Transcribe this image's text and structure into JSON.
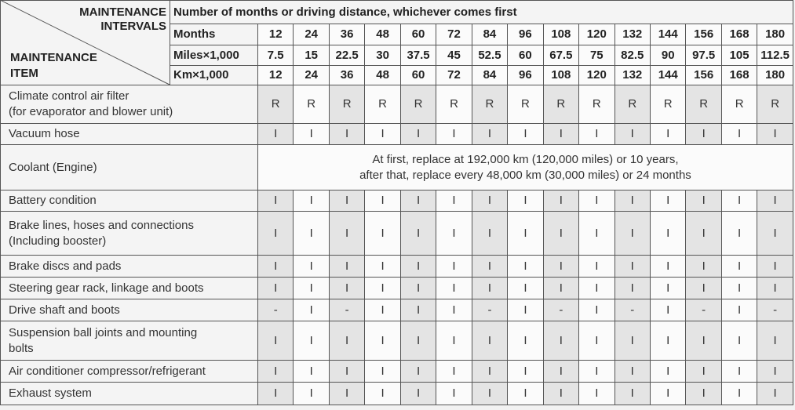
{
  "header": {
    "intervals": [
      "MAINTENANCE",
      "INTERVALS"
    ],
    "item": [
      "MAINTENANCE",
      "ITEM"
    ],
    "caption": "Number of months or driving distance, whichever comes first",
    "scales": [
      {
        "label": "Months",
        "values": [
          "12",
          "24",
          "36",
          "48",
          "60",
          "72",
          "84",
          "96",
          "108",
          "120",
          "132",
          "144",
          "156",
          "168",
          "180"
        ]
      },
      {
        "label": "Miles×1,000",
        "values": [
          "7.5",
          "15",
          "22.5",
          "30",
          "37.5",
          "45",
          "52.5",
          "60",
          "67.5",
          "75",
          "82.5",
          "90",
          "97.5",
          "105",
          "112.5"
        ]
      },
      {
        "label": "Km×1,000",
        "values": [
          "12",
          "24",
          "36",
          "48",
          "60",
          "72",
          "84",
          "96",
          "108",
          "120",
          "132",
          "144",
          "156",
          "168",
          "180"
        ]
      }
    ]
  },
  "rows": [
    {
      "name": [
        "Climate control air filter",
        "(for evaporator and blower unit)"
      ],
      "values": [
        "R",
        "R",
        "R",
        "R",
        "R",
        "R",
        "R",
        "R",
        "R",
        "R",
        "R",
        "R",
        "R",
        "R",
        "R"
      ]
    },
    {
      "name": [
        "Vacuum hose"
      ],
      "values": [
        "I",
        "I",
        "I",
        "I",
        "I",
        "I",
        "I",
        "I",
        "I",
        "I",
        "I",
        "I",
        "I",
        "I",
        "I"
      ]
    },
    {
      "name": [
        "Coolant (Engine)"
      ],
      "note": [
        "At first, replace at 192,000 km (120,000 miles) or 10 years,",
        "after that, replace every 48,000 km (30,000 miles) or 24 months"
      ]
    },
    {
      "name": [
        "Battery condition"
      ],
      "values": [
        "I",
        "I",
        "I",
        "I",
        "I",
        "I",
        "I",
        "I",
        "I",
        "I",
        "I",
        "I",
        "I",
        "I",
        "I"
      ]
    },
    {
      "name": [
        "Brake lines, hoses and connections",
        "(Including booster)"
      ],
      "values": [
        "I",
        "I",
        "I",
        "I",
        "I",
        "I",
        "I",
        "I",
        "I",
        "I",
        "I",
        "I",
        "I",
        "I",
        "I"
      ]
    },
    {
      "name": [
        "Brake discs and pads"
      ],
      "values": [
        "I",
        "I",
        "I",
        "I",
        "I",
        "I",
        "I",
        "I",
        "I",
        "I",
        "I",
        "I",
        "I",
        "I",
        "I"
      ]
    },
    {
      "name": [
        "Steering gear rack, linkage and boots"
      ],
      "values": [
        "I",
        "I",
        "I",
        "I",
        "I",
        "I",
        "I",
        "I",
        "I",
        "I",
        "I",
        "I",
        "I",
        "I",
        "I"
      ]
    },
    {
      "name": [
        "Drive shaft and boots"
      ],
      "values": [
        "-",
        "I",
        "-",
        "I",
        "I",
        "I",
        "-",
        "I",
        "-",
        "I",
        "-",
        "I",
        "-",
        "I",
        "-"
      ]
    },
    {
      "name": [
        "Suspension ball joints and mounting",
        "bolts"
      ],
      "values": [
        "I",
        "I",
        "I",
        "I",
        "I",
        "I",
        "I",
        "I",
        "I",
        "I",
        "I",
        "I",
        "I",
        "I",
        "I"
      ]
    },
    {
      "name": [
        "Air conditioner compressor/refrigerant"
      ],
      "values": [
        "I",
        "I",
        "I",
        "I",
        "I",
        "I",
        "I",
        "I",
        "I",
        "I",
        "I",
        "I",
        "I",
        "I",
        "I"
      ]
    },
    {
      "name": [
        "Exhaust system"
      ],
      "values": [
        "I",
        "I",
        "I",
        "I",
        "I",
        "I",
        "I",
        "I",
        "I",
        "I",
        "I",
        "I",
        "I",
        "I",
        "I"
      ]
    }
  ]
}
